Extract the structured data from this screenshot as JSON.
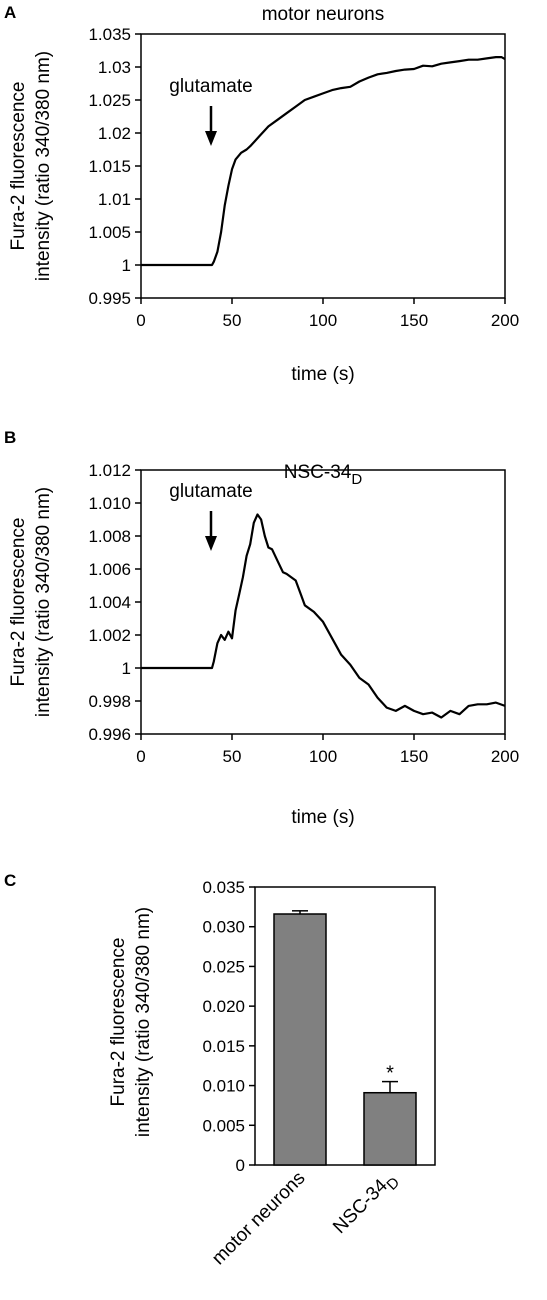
{
  "chart_data": [
    {
      "panel": "A",
      "type": "line",
      "title": "motor neurons",
      "xlabel": "time (s)",
      "ylabel": [
        "Fura-2 fluorescence",
        "intensity (ratio 340/380 nm)"
      ],
      "xlim": [
        0,
        200
      ],
      "ylim": [
        0.995,
        1.035
      ],
      "xticks": [
        "0",
        "50",
        "100",
        "150",
        "200"
      ],
      "yticks": [
        "0.995",
        "1",
        "1.005",
        "1.01",
        "1.015",
        "1.02",
        "1.025",
        "1.03",
        "1.035"
      ],
      "annotation": {
        "text": "glutamate",
        "x": 40
      },
      "series": [
        {
          "color": "#000000",
          "x": [
            0,
            20,
            39,
            40,
            42,
            44,
            46,
            48,
            50,
            52,
            55,
            58,
            60,
            65,
            70,
            75,
            80,
            85,
            90,
            95,
            100,
            105,
            110,
            115,
            120,
            125,
            130,
            135,
            140,
            145,
            150,
            155,
            160,
            165,
            170,
            175,
            180,
            185,
            190,
            195,
            198,
            200
          ],
          "y": [
            1.0,
            1.0,
            1.0,
            1.0005,
            1.002,
            1.005,
            1.009,
            1.012,
            1.0145,
            1.016,
            1.017,
            1.0175,
            1.018,
            1.0195,
            1.021,
            1.022,
            1.023,
            1.024,
            1.025,
            1.0255,
            1.026,
            1.0265,
            1.0268,
            1.027,
            1.0278,
            1.0284,
            1.0289,
            1.0291,
            1.0294,
            1.0296,
            1.0297,
            1.0302,
            1.0301,
            1.0305,
            1.0307,
            1.0309,
            1.0311,
            1.0311,
            1.0313,
            1.0315,
            1.0315,
            1.0312
          ]
        }
      ]
    },
    {
      "panel": "B",
      "type": "line",
      "title": "NSC-34",
      "title_sub": "D",
      "xlabel": "time (s)",
      "ylabel": [
        "Fura-2 fluorescence",
        "intensity (ratio 340/380 nm)"
      ],
      "xlim": [
        0,
        200
      ],
      "ylim": [
        0.996,
        1.012
      ],
      "xticks": [
        "0",
        "50",
        "100",
        "150",
        "200"
      ],
      "yticks": [
        "0.996",
        "0.998",
        "1",
        "1.002",
        "1.004",
        "1.006",
        "1.008",
        "1.010",
        "1.012"
      ],
      "annotation": {
        "text": "glutamate",
        "x": 40
      },
      "series": [
        {
          "color": "#000000",
          "x": [
            0,
            20,
            39,
            40,
            42,
            44,
            46,
            48,
            50,
            52,
            54,
            56,
            58,
            60,
            62,
            64,
            66,
            68,
            70,
            72,
            75,
            78,
            80,
            85,
            88,
            90,
            95,
            100,
            105,
            110,
            115,
            120,
            125,
            130,
            135,
            140,
            145,
            150,
            155,
            160,
            165,
            170,
            175,
            180,
            185,
            190,
            195,
            200
          ],
          "y": [
            1.0,
            1.0,
            1.0,
            1.0004,
            1.0015,
            1.002,
            1.0017,
            1.0022,
            1.0018,
            1.0035,
            1.0045,
            1.0055,
            1.0068,
            1.0075,
            1.0088,
            1.0093,
            1.009,
            1.008,
            1.0073,
            1.0072,
            1.0065,
            1.0058,
            1.0057,
            1.0053,
            1.0044,
            1.0038,
            1.0034,
            1.0028,
            1.0018,
            1.0008,
            1.0002,
            0.9994,
            0.999,
            0.9982,
            0.9976,
            0.9974,
            0.9977,
            0.9974,
            0.9972,
            0.9973,
            0.997,
            0.9974,
            0.9972,
            0.9977,
            0.9978,
            0.9978,
            0.9979,
            0.9977
          ]
        }
      ]
    },
    {
      "panel": "C",
      "type": "bar",
      "ylabel": [
        "Fura-2 fluorescence",
        "intensity (ratio 340/380 nm)"
      ],
      "ylim": [
        0,
        0.035
      ],
      "yticks": [
        "0",
        "0.005",
        "0.010",
        "0.015",
        "0.020",
        "0.025",
        "0.030",
        "0.035"
      ],
      "categories": [
        {
          "label": "motor neurons",
          "sub": ""
        },
        {
          "label": "NSC-34",
          "sub": "D"
        }
      ],
      "values": [
        0.0316,
        0.0091
      ],
      "errors": [
        0.0004,
        0.0014
      ],
      "significance": [
        "",
        "*"
      ],
      "bar_color": "#808080"
    }
  ]
}
